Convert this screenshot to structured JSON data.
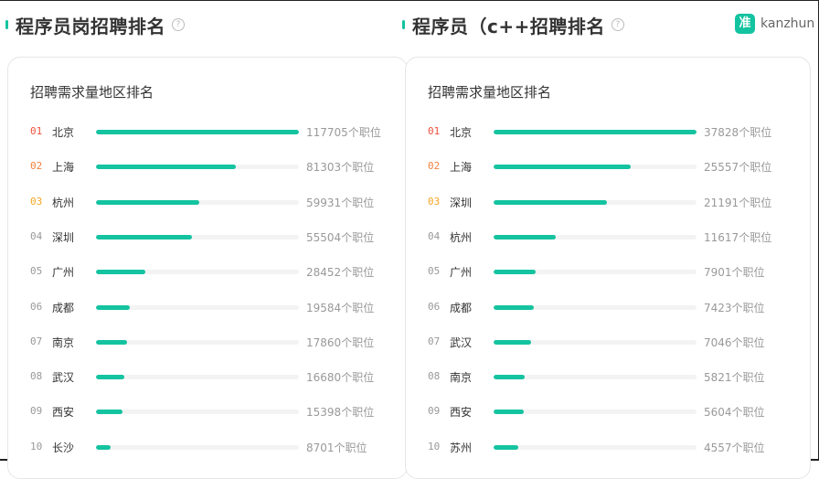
{
  "brand": {
    "logo_char": "准",
    "name": "kanzhun"
  },
  "icons": {
    "help": "question-circle-icon"
  },
  "colors": {
    "accent": "#14c3a0",
    "rank_top1": "#f0503c",
    "rank_top2": "#f2813c",
    "rank_top3": "#f5a623",
    "rank_other": "#999999"
  },
  "sections": [
    {
      "title": "程序员岗招聘排名",
      "card_title": "招聘需求量地区排名",
      "suffix": "个职位",
      "max": 117705,
      "rows": [
        {
          "rank": "01",
          "city": "北京",
          "count": 117705
        },
        {
          "rank": "02",
          "city": "上海",
          "count": 81303
        },
        {
          "rank": "03",
          "city": "杭州",
          "count": 59931
        },
        {
          "rank": "04",
          "city": "深圳",
          "count": 55504
        },
        {
          "rank": "05",
          "city": "广州",
          "count": 28452
        },
        {
          "rank": "06",
          "city": "成都",
          "count": 19584
        },
        {
          "rank": "07",
          "city": "南京",
          "count": 17860
        },
        {
          "rank": "08",
          "city": "武汉",
          "count": 16680
        },
        {
          "rank": "09",
          "city": "西安",
          "count": 15398
        },
        {
          "rank": "10",
          "city": "长沙",
          "count": 8701
        }
      ]
    },
    {
      "title": "程序员（c++招聘排名",
      "card_title": "招聘需求量地区排名",
      "suffix": "个职位",
      "max": 37828,
      "rows": [
        {
          "rank": "01",
          "city": "北京",
          "count": 37828
        },
        {
          "rank": "02",
          "city": "上海",
          "count": 25557
        },
        {
          "rank": "03",
          "city": "深圳",
          "count": 21191
        },
        {
          "rank": "04",
          "city": "杭州",
          "count": 11617
        },
        {
          "rank": "05",
          "city": "广州",
          "count": 7901
        },
        {
          "rank": "06",
          "city": "成都",
          "count": 7423
        },
        {
          "rank": "07",
          "city": "武汉",
          "count": 7046
        },
        {
          "rank": "08",
          "city": "南京",
          "count": 5821
        },
        {
          "rank": "09",
          "city": "西安",
          "count": 5604
        },
        {
          "rank": "10",
          "city": "苏州",
          "count": 4557
        }
      ]
    }
  ]
}
